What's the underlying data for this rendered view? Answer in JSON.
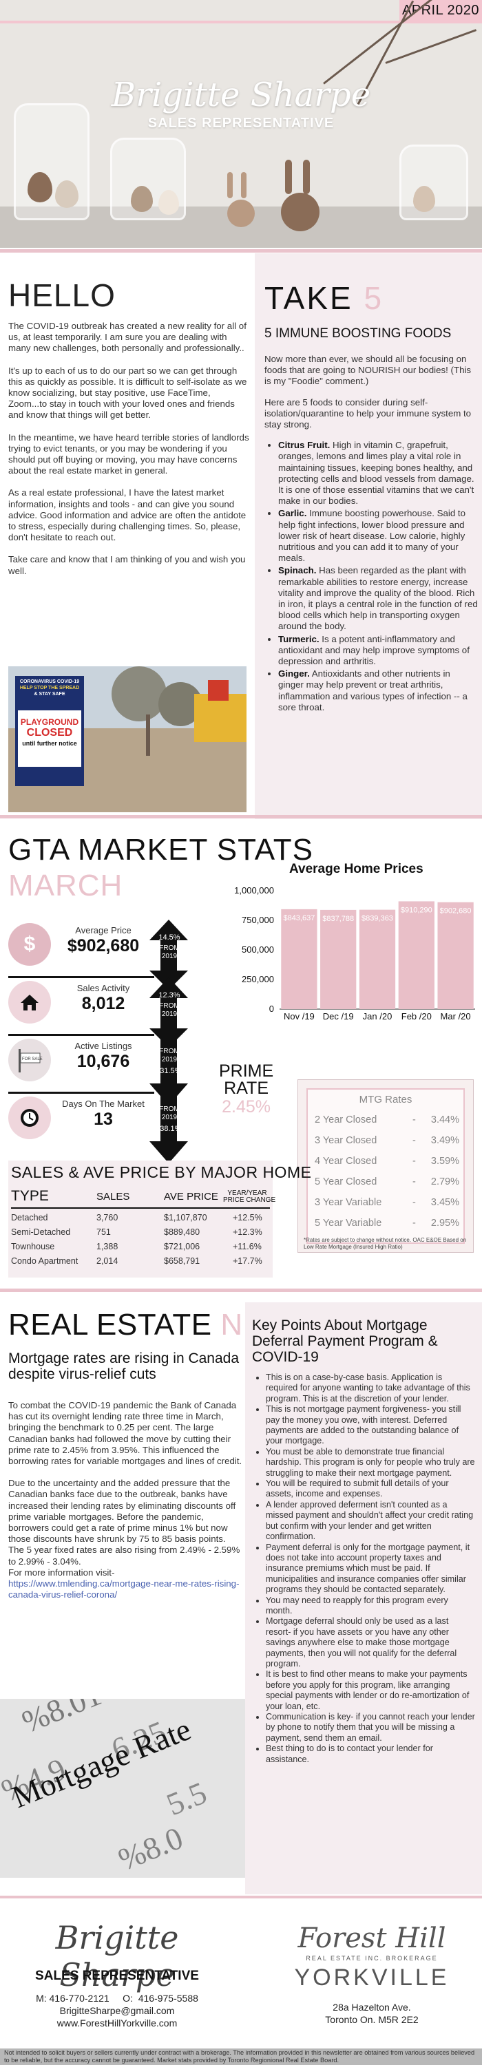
{
  "header": {
    "month": "APRIL 2020",
    "agent_name": "Brigitte Sharpe",
    "agent_role": "SALES REPRESENTATIVE"
  },
  "hello": {
    "title": "HELLO",
    "paragraphs": [
      "The COVID-19 outbreak has created a new reality for all of us, at least temporarily. I am sure you are dealing with many new challenges, both personally and professionally..",
      "It's up to each of us to do our part so we can get through this as quickly as possible. It is difficult to self-isolate as we know socializing, but stay positive, use FaceTime, Zoom...to stay in touch with your loved ones and friends and know that things will get better.",
      "In the meantime, we have heard terrible stories of landlords trying to evict tenants, or you may be wondering if you should put off buying or moving, you may have concerns about the real estate market in general.",
      "As a real estate professional, I have the latest market information, insights and tools - and can give you sound advice. Good information and advice are often the antidote to stress, especially during challenging times. So, please, don't hesitate to reach out.",
      "Take care and know that I am thinking of you and wish you well."
    ],
    "sign_lines": [
      "CORONAVIRUS COVID-19",
      "HELP STOP THE SPREAD",
      "& STAY SAFE",
      "PLAYGROUND",
      "CLOSED",
      "until further notice"
    ]
  },
  "take5": {
    "title_word": "TAKE",
    "title_num": "5",
    "subtitle": "5 IMMUNE BOOSTING FOODS",
    "intro": [
      "Now more than ever, we should all be focusing on foods that are going to NOURISH our bodies! (This is my \"Foodie\" comment.)",
      "Here are 5 foods to consider during self-isolation/quarantine to help your immune system to stay strong."
    ],
    "items": [
      {
        "name": "Citrus Fruit.",
        "text": " High in vitamin C, grapefruit, oranges, lemons and limes play a vital role in maintaining tissues, keeping bones healthy, and protecting cells and blood vessels from damage. It is one of those essential vitamins that we can't make in our bodies."
      },
      {
        "name": "Garlic.",
        "text": " Immune boosting powerhouse. Said to help fight infections, lower blood pressure and lower risk of heart disease. Low calorie, highly nutritious and you can add it to many of your meals."
      },
      {
        "name": "Spinach.",
        "text": " Has been regarded as the plant with remarkable abilities to restore energy, increase vitality and improve the quality of the blood. Rich in iron, it plays a central role in the function of red blood cells which help in transporting oxygen around the body."
      },
      {
        "name": "Turmeric.",
        "text": " Is a potent anti-inflammatory and antioxidant and may help improve symptoms of depression and arthritis."
      },
      {
        "name": "Ginger.",
        "text": " Antioxidants and other nutrients in ginger may help prevent or treat arthritis, inflammation and various types of infection -- a sore throat."
      }
    ]
  },
  "market": {
    "title": "GTA MARKET STATS",
    "month": "MARCH",
    "stats": [
      {
        "label": "Average Price",
        "value": "$902,680",
        "change": "14.5%",
        "direction": "up",
        "from_line1": "FROM",
        "from_line2": "2019",
        "icon": "dollar-icon"
      },
      {
        "label": "Sales Activity",
        "value": "8,012",
        "change": "12.3%",
        "direction": "up",
        "from_line1": "FROM",
        "from_line2": "2019",
        "icon": "house-icon"
      },
      {
        "label": "Active Listings",
        "value": "10,676",
        "change": "-31.5%",
        "direction": "down",
        "from_line1": "FROM",
        "from_line2": "2019",
        "icon": "for-sale-sign-icon"
      },
      {
        "label": "Days On The Market",
        "value": "13",
        "change": "-38.1%",
        "direction": "down",
        "from_line1": "FROM",
        "from_line2": "2019",
        "icon": "clock-icon"
      }
    ],
    "for_sale_text": "FOR SALE",
    "prime": {
      "label_1": "PRIME",
      "label_2": "RATE",
      "value": "2.45%"
    }
  },
  "chart_data": {
    "type": "bar",
    "title": "Average Home Prices",
    "categories": [
      "Nov /19",
      "Dec /19",
      "Jan /20",
      "Feb /20",
      "Mar /20"
    ],
    "values": [
      843637,
      837788,
      839363,
      910290,
      902680
    ],
    "data_labels": [
      "$843,637",
      "$837,788",
      "$839,363",
      "$910,290",
      "$902,680"
    ],
    "y_ticks": [
      "0",
      "250,000",
      "500,000",
      "750,000",
      "1,000,000"
    ],
    "ylim": [
      0,
      1000000
    ],
    "bar_color": "#e9bfc8",
    "grid": false
  },
  "mtg_rates": {
    "title": "MTG Rates",
    "rows": [
      {
        "term": "2 Year Closed",
        "dash": "-",
        "rate": "3.44%"
      },
      {
        "term": "3 Year Closed",
        "dash": "-",
        "rate": "3.49%"
      },
      {
        "term": "4 Year Closed",
        "dash": "-",
        "rate": "3.59%"
      },
      {
        "term": "5 Year Closed",
        "dash": "-",
        "rate": "2.79%"
      },
      {
        "term": "3 Year Variable",
        "dash": "-",
        "rate": "3.45%"
      },
      {
        "term": "5 Year Variable",
        "dash": "-",
        "rate": "2.95%"
      }
    ],
    "footnote": "*Rates are subject to change without notice. OAC E&OE Based on Low Rate Mortgage (Insured High Ratio)"
  },
  "sales_table": {
    "title": "SALES & AVE PRICE BY MAJOR HOME",
    "headers": [
      "TYPE",
      "SALES",
      "AVE PRICE"
    ],
    "header_change_1": "YEAR/YEAR",
    "header_change_2": "PRICE CHANGE",
    "rows": [
      {
        "type": "Detached",
        "sales": "3,760",
        "price": "$1,107,870",
        "change": "+12.5%"
      },
      {
        "type": "Semi-Detached",
        "sales": "751",
        "price": "$889,480",
        "change": "+12.3%"
      },
      {
        "type": "Townhouse",
        "sales": "1,388",
        "price": "$721,006",
        "change": "+11.6%"
      },
      {
        "type": "Condo Apartment",
        "sales": "2,014",
        "price": "$658,791",
        "change": "+17.7%"
      }
    ]
  },
  "news": {
    "title_1": "REAL ESTATE",
    "title_2": "NEWS",
    "headline": "Mortgage rates are rising in Canada despite virus-relief cuts",
    "paragraphs": [
      "To combat the COVID-19 pandemic the Bank of Canada has cut its overnight lending rate three time in March, bringing the benchmark to 0.25 per cent. The large Canadian banks had followed the move by cutting their prime rate to 2.45% from 3.95%.  This influenced the borrowing rates for variable mortgages and lines of credit.",
      "Due to the uncertainty and the added pressure that the Canadian banks face due to the outbreak, banks have increased their lending rates by eliminating discounts off prime variable mortgages.  Before the pandemic, borrowers could get a rate of prime minus 1% but now those discounts have shrunk by 75 to 85 basis points.  The 5 year fixed rates are also rising from 2.49% - 2.59% to 2.99% - 3.04%."
    ],
    "more_info": "For more information visit-",
    "link": "https://www.tmlending.ca/mortgage-near-me-rates-rising-canada-virus-relief-corona/",
    "photo_text": "Mortgage Rate"
  },
  "deferral": {
    "title": "Key Points About Mortgage Deferral Payment Program & COVID-19",
    "points": [
      "This is on a case-by-case basis.  Application is required for anyone wanting to take advantage of this program.  This is at the discretion of your lender.",
      "This is not mortgage payment forgiveness- you still pay the money you owe, with interest. Deferred payments are added to the outstanding balance of your mortgage.",
      "You must be able to demonstrate true financial hardship. This program is only for people who truly are struggling to make their next mortgage payment.",
      "You will be required to submit full details of your assets, income and expenses.",
      "A lender approved deferment isn't counted as a missed payment and shouldn't affect your credit rating but confirm with your lender and get written confirmation.",
      "Payment deferral is only for the mortgage payment, it does not take into account property taxes and insurance premiums which must be paid.  If municipalities and insurance companies offer similar programs they should be contacted separately.",
      "You may need to reapply for this program every month.",
      "Mortgage deferral should only be used as a last resort- if you have assets or you have any other savings anywhere else to make those mortgage payments, then you will not qualify for the deferral program.",
      "It is best to find other means to make your payments before you apply for this program, like arranging special payments with lender or do re-amortization of your loan, etc.",
      "Communication is key- if you cannot reach your lender by phone to notify them that you will be missing a payment, send them an email.",
      "Best thing to do is to contact your lender for assistance."
    ]
  },
  "footer": {
    "name": "Brigitte Sharpe",
    "role": "SALES REPRESENTATIVE",
    "phone_line": "M: 416-770-2121     O:  416-975-5588",
    "email": "BrigitteSharpe@gmail.com",
    "website": "www.ForestHillYorkville.com",
    "brokerage_1": "Forest Hill",
    "brokerage_2": "REAL ESTATE INC. BROKERAGE",
    "brokerage_3": "YORKVILLE",
    "address_1": "28a Hazelton Ave.",
    "address_2": "Toronto On. M5R 2E2",
    "disclaimer": "Not intended to solicit buyers or sellers currently under contract with a brokerage.   The information provided in this newsletter are obtained from various sources believed to be reliable, but the accuracy cannot be guaranteed. Market stats provided by Toronto Regionional Real Estate Board."
  }
}
